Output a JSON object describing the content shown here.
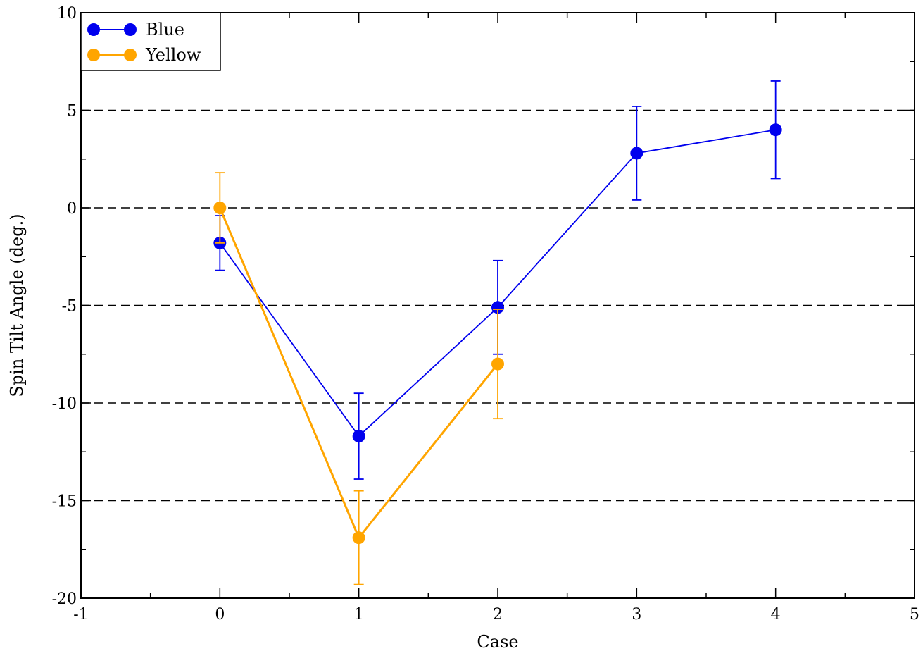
{
  "chart_data": {
    "type": "line",
    "title": "",
    "xlabel": "Case",
    "ylabel": "Spin Tilt Angle (deg.)",
    "xlim": [
      -1,
      5
    ],
    "ylim": [
      -20,
      10
    ],
    "x_ticks": [
      -1,
      0,
      1,
      2,
      3,
      4,
      5
    ],
    "y_ticks": [
      -20,
      -15,
      -10,
      -5,
      0,
      5,
      10
    ],
    "x_minor_step": 0.5,
    "y_minor_step": 2.5,
    "grid": "dashed horizontal lines at major y ticks",
    "legend_position": "top-left",
    "series": [
      {
        "name": "Blue",
        "color": "#0000ee",
        "x": [
          0,
          1,
          2,
          3,
          4
        ],
        "y": [
          -1.8,
          -11.7,
          -5.1,
          2.8,
          4.0
        ],
        "err": [
          1.4,
          2.2,
          2.4,
          2.4,
          2.5
        ]
      },
      {
        "name": "Yellow",
        "color": "#ffa500",
        "x": [
          0,
          1,
          2
        ],
        "y": [
          0.0,
          -16.9,
          -8.0
        ],
        "err": [
          1.8,
          2.4,
          2.8
        ]
      }
    ]
  }
}
